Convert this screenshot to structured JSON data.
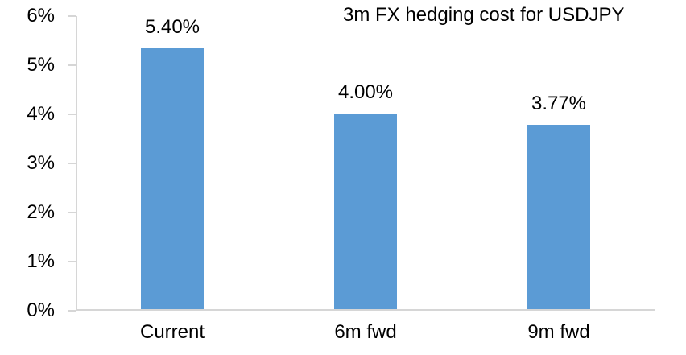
{
  "chart_data": {
    "type": "bar",
    "title": "3m FX hedging cost for USDJPY",
    "categories": [
      "Current",
      "6m fwd",
      "9m fwd"
    ],
    "values": [
      5.4,
      4.0,
      3.77
    ],
    "data_labels": [
      "5.40%",
      "4.00%",
      "3.77%"
    ],
    "y_ticks": [
      "0%",
      "1%",
      "2%",
      "3%",
      "4%",
      "5%",
      "6%"
    ],
    "ylim": [
      0,
      6
    ],
    "ylabel": "",
    "xlabel": "",
    "grid": false,
    "legend": false,
    "bar_color": "#5b9bd5",
    "axis_color": "#d6d6d6",
    "text_color": "#000000",
    "background_color": "#ffffff"
  }
}
